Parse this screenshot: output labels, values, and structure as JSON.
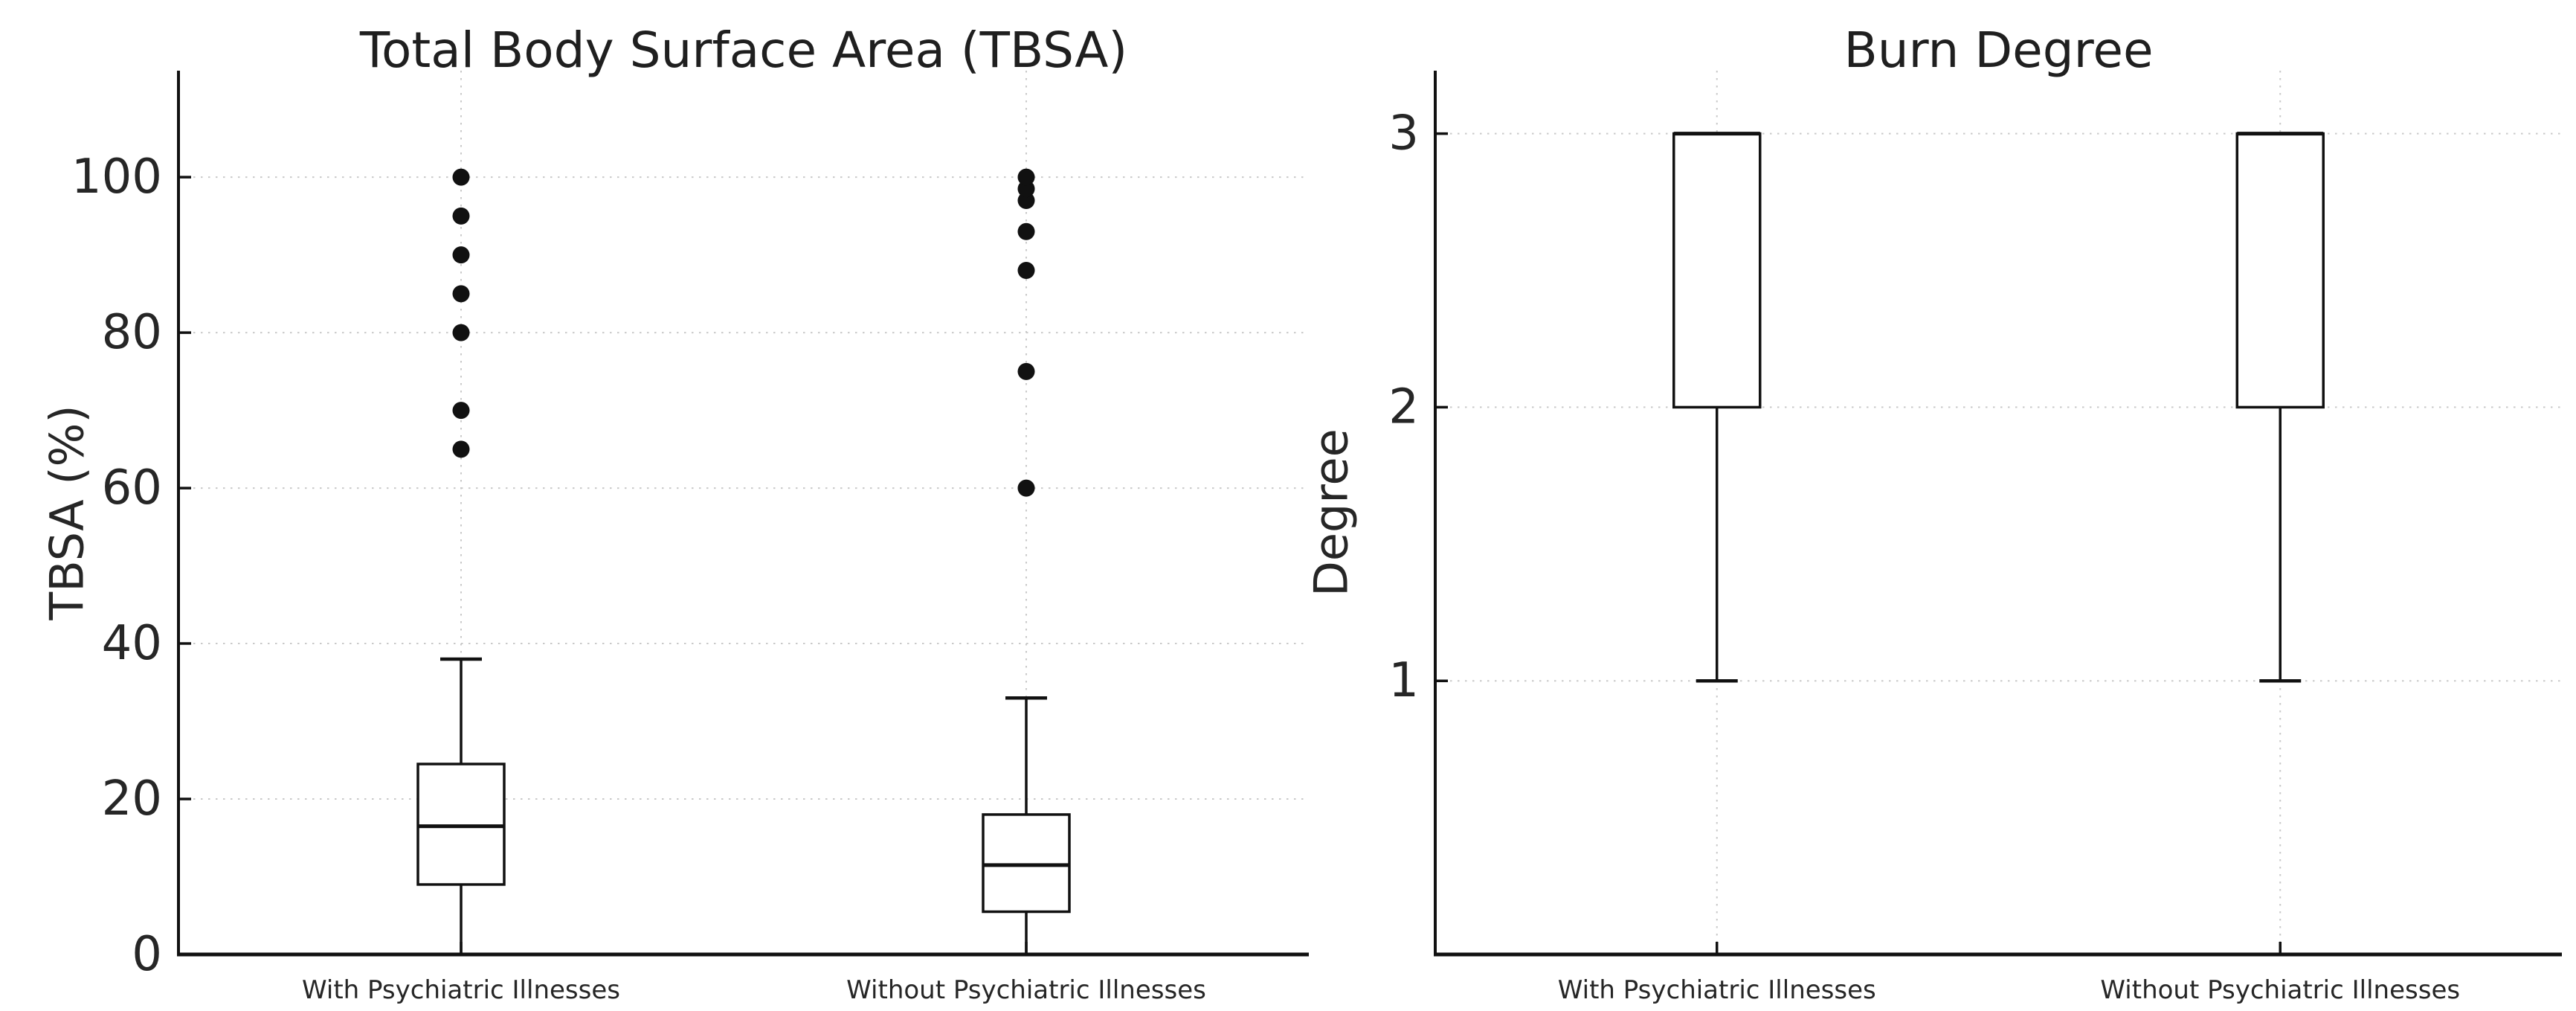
{
  "figure": {
    "background": "#ffffff",
    "kind": "matplotlib-style boxplot figure with two subplots"
  },
  "style": {
    "line_color": "#111111",
    "text_color": "#262626",
    "grid_color": "#c9c9c9",
    "box_fill": "#ffffff"
  },
  "chart_data": [
    {
      "type": "boxplot",
      "title": "Total Body Surface Area (TBSA)",
      "ylabel": "TBSA (%)",
      "xlabel": "",
      "categories": [
        "With Psychiatric Illnesses",
        "Without Psychiatric Illnesses"
      ],
      "yticks": [
        0,
        20,
        40,
        60,
        80,
        100
      ],
      "ylim": [
        0,
        113.7
      ],
      "grid": {
        "horizontal": true,
        "vertical_at_categories": true,
        "style": "dotted"
      },
      "legend": null,
      "series": [
        {
          "category": "With Psychiatric Illnesses",
          "whisker_low": 0,
          "q1": 9,
          "median": 16.5,
          "q3": 24.5,
          "whisker_high": 38,
          "outliers": [
            65,
            70,
            80,
            85,
            90,
            95,
            100
          ]
        },
        {
          "category": "Without Psychiatric Illnesses",
          "whisker_low": 0,
          "q1": 5.5,
          "median": 11.5,
          "q3": 18,
          "whisker_high": 33,
          "outliers": [
            60,
            75,
            88,
            93,
            97,
            98.5,
            100
          ]
        }
      ]
    },
    {
      "type": "boxplot",
      "title": "Burn Degree",
      "ylabel": "Degree",
      "xlabel": "",
      "categories": [
        "With Psychiatric Illnesses",
        "Without Psychiatric Illnesses"
      ],
      "yticks": [
        1,
        2,
        3
      ],
      "ylim": [
        0,
        3.23
      ],
      "grid": {
        "horizontal": true,
        "vertical_at_categories": true,
        "style": "dotted"
      },
      "legend": null,
      "series": [
        {
          "category": "With Psychiatric Illnesses",
          "whisker_low": 1,
          "q1": 2,
          "median": 3,
          "q3": 3,
          "whisker_high": 3,
          "outliers": []
        },
        {
          "category": "Without Psychiatric Illnesses",
          "whisker_low": 1,
          "q1": 2,
          "median": 3,
          "q3": 3,
          "whisker_high": 3,
          "outliers": []
        }
      ]
    }
  ]
}
